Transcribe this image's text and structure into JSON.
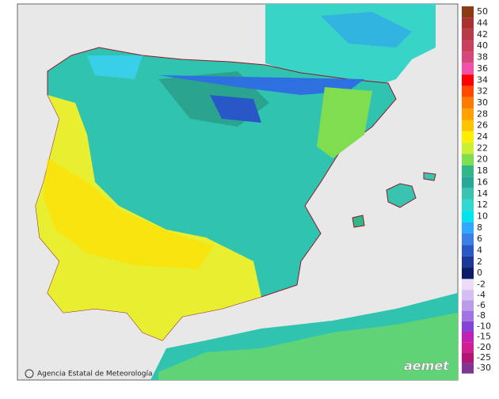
{
  "map": {
    "credit": "Agencia Estatal de Meteorología",
    "logo": "aemet"
  },
  "legend": {
    "upper": [
      {
        "label": 50,
        "color": "#8b3a12"
      },
      {
        "label": 44,
        "color": "#a83232"
      },
      {
        "label": 42,
        "color": "#b83a48"
      },
      {
        "label": 40,
        "color": "#c8405e"
      },
      {
        "label": 38,
        "color": "#d8467c"
      },
      {
        "label": 36,
        "color": "#f050a8"
      },
      {
        "label": 34,
        "color": "#ff0000"
      },
      {
        "label": 32,
        "color": "#ff4a00"
      },
      {
        "label": 30,
        "color": "#ff7a00"
      },
      {
        "label": 28,
        "color": "#ffa000"
      },
      {
        "label": 26,
        "color": "#ffc400"
      },
      {
        "label": 24,
        "color": "#ffee00"
      },
      {
        "label": 22,
        "color": "#ccee33"
      },
      {
        "label": 20,
        "color": "#80dd50"
      },
      {
        "label": 18,
        "color": "#30b888"
      },
      {
        "label": 16,
        "color": "#28a898"
      },
      {
        "label": 14,
        "color": "#38c4b0"
      },
      {
        "label": 12,
        "color": "#30d8d0"
      },
      {
        "label": 10,
        "color": "#00e4ee"
      },
      {
        "label": 8,
        "color": "#30a8ff"
      },
      {
        "label": 6,
        "color": "#3a80e8"
      },
      {
        "label": 4,
        "color": "#2858c8"
      },
      {
        "label": 2,
        "color": "#1a3898"
      },
      {
        "label": 0,
        "color": "#0c1c68"
      }
    ],
    "lower": [
      {
        "label": -2,
        "color": "#ecdcf8"
      },
      {
        "label": -4,
        "color": "#d6bef2"
      },
      {
        "label": -6,
        "color": "#bc9cea"
      },
      {
        "label": -8,
        "color": "#a274e2"
      },
      {
        "label": -10,
        "color": "#8444d8"
      },
      {
        "label": -15,
        "color": "#c020b4"
      },
      {
        "label": -20,
        "color": "#d41c94"
      },
      {
        "label": -25,
        "color": "#b01474"
      },
      {
        "label": -30,
        "color": "#803494"
      }
    ]
  }
}
